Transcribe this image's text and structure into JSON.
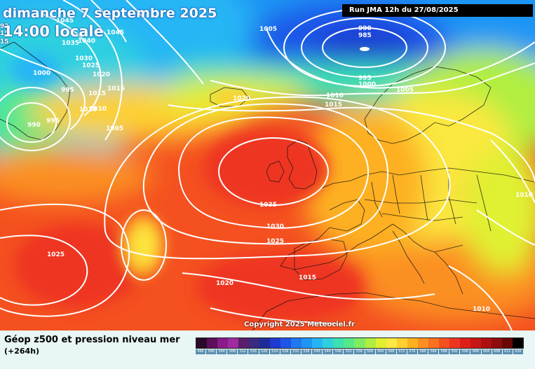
{
  "header": {
    "date": "dimanche 7 septembre 2025",
    "time": "14:00 locale",
    "run": "Run JMA 12h du 27/08/2025"
  },
  "copyright": "Copyright 2025 Meteociel.fr",
  "legend": {
    "title": "Géop z500 et pression niveau mer",
    "subtitle": "(+264h)",
    "scale": [
      {
        "value": "496",
        "color": "#2a0a2a"
      },
      {
        "value": "500",
        "color": "#5c0f5c"
      },
      {
        "value": "504",
        "color": "#8a1a8a"
      },
      {
        "value": "508",
        "color": "#a02aa0"
      },
      {
        "value": "512",
        "color": "#5a1e6a"
      },
      {
        "value": "516",
        "color": "#3a2a80"
      },
      {
        "value": "520",
        "color": "#1f2a9a"
      },
      {
        "value": "524",
        "color": "#1e3ad0"
      },
      {
        "value": "528",
        "color": "#1e55e8"
      },
      {
        "value": "532",
        "color": "#1e78f0"
      },
      {
        "value": "536",
        "color": "#1f95f5"
      },
      {
        "value": "540",
        "color": "#25b5f5"
      },
      {
        "value": "544",
        "color": "#2ed0e0"
      },
      {
        "value": "548",
        "color": "#3de0b0"
      },
      {
        "value": "552",
        "color": "#55e888"
      },
      {
        "value": "556",
        "color": "#80ec60"
      },
      {
        "value": "560",
        "color": "#b0ee40"
      },
      {
        "value": "564",
        "color": "#e0f030"
      },
      {
        "value": "568",
        "color": "#fbe840"
      },
      {
        "value": "572",
        "color": "#fdd030"
      },
      {
        "value": "576",
        "color": "#fdb020"
      },
      {
        "value": "580",
        "color": "#fb9020"
      },
      {
        "value": "584",
        "color": "#f87020"
      },
      {
        "value": "588",
        "color": "#f45020"
      },
      {
        "value": "592",
        "color": "#ee3520"
      },
      {
        "value": "596",
        "color": "#de2018"
      },
      {
        "value": "600",
        "color": "#c81515"
      },
      {
        "value": "604",
        "color": "#ad1010"
      },
      {
        "value": "608",
        "color": "#8e0c0c"
      },
      {
        "value": "612",
        "color": "#6a0808"
      },
      {
        "value": "616",
        "color": "#000000"
      }
    ]
  },
  "isobars": [
    {
      "label": "1045"
    },
    {
      "label": "1045"
    },
    {
      "label": "1035"
    },
    {
      "label": "1040"
    },
    {
      "label": "1030"
    },
    {
      "label": "1025"
    },
    {
      "label": "1020"
    },
    {
      "label": "1000"
    },
    {
      "label": "995"
    },
    {
      "label": "1015"
    },
    {
      "label": "1015"
    },
    {
      "label": "1010"
    },
    {
      "label": "1010"
    },
    {
      "label": "990"
    },
    {
      "label": "995"
    },
    {
      "label": "1005"
    },
    {
      "label": "1005"
    },
    {
      "label": "990"
    },
    {
      "label": "985"
    },
    {
      "label": "995"
    },
    {
      "label": "1000"
    },
    {
      "label": "1005"
    },
    {
      "label": "1020"
    },
    {
      "label": "1010"
    },
    {
      "label": "1015"
    },
    {
      "label": "1035"
    },
    {
      "label": "1030"
    },
    {
      "label": "1025"
    },
    {
      "label": "1025"
    },
    {
      "label": "1020"
    },
    {
      "label": "1015"
    },
    {
      "label": "1010"
    },
    {
      "label": "1010"
    }
  ],
  "edge_labels": [
    "92",
    "15",
    "15"
  ]
}
